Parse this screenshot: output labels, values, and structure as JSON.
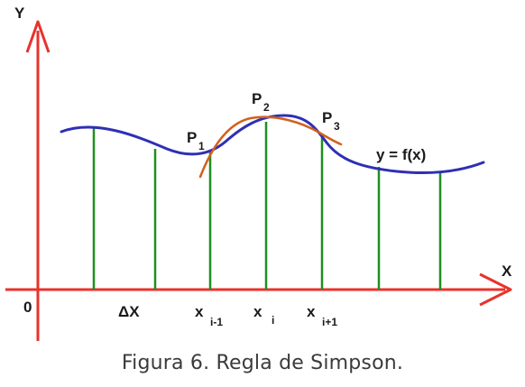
{
  "axes": {
    "y_label": "Y",
    "x_label": "X",
    "origin_label": "0",
    "color": "#e8322b"
  },
  "curve": {
    "label": "y = f(x)",
    "color": "#2f2fb5"
  },
  "parabola": {
    "color": "#d2601c"
  },
  "ordinates": {
    "color": "#1f8f1f"
  },
  "labels": {
    "delta_x": "ΔX",
    "x_i_minus_1": {
      "base": "x",
      "sub": "i-1"
    },
    "x_i": {
      "base": "x",
      "sub": "i"
    },
    "x_i_plus_1": {
      "base": "x",
      "sub": "i+1"
    },
    "p1": {
      "base": "P",
      "sub": "1"
    },
    "p2": {
      "base": "P",
      "sub": "2"
    },
    "p3": {
      "base": "P",
      "sub": "3"
    }
  },
  "caption": "Figura 6. Regla de Simpson."
}
